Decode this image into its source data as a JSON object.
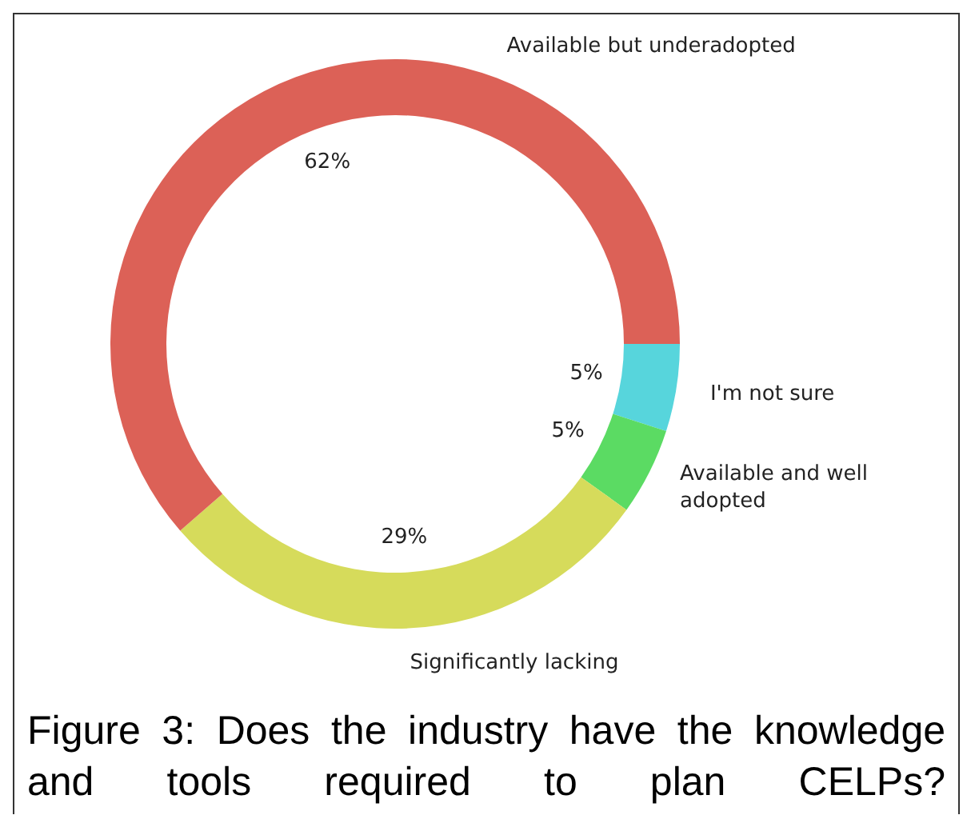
{
  "chart_data": {
    "type": "donut",
    "categories": [
      "I'm not sure",
      "Available and well\nadopted",
      "Significantly lacking",
      "Available but underadopted"
    ],
    "values": [
      5,
      5,
      29,
      62
    ],
    "value_labels": [
      "5%",
      "5%",
      "29%",
      "62%"
    ],
    "colors": [
      "#57d5dc",
      "#5bdb63",
      "#d6db5b",
      "#dc6157"
    ],
    "legend": false,
    "annotations": [
      "Figure 3: Does the industry have the knowledge and tools required to plan CELPs?"
    ]
  }
}
